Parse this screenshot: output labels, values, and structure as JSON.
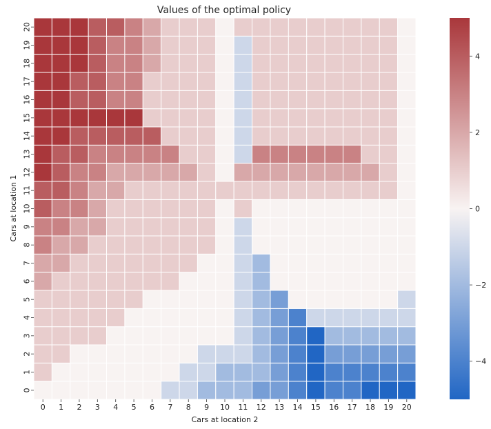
{
  "chart_data": {
    "type": "heatmap",
    "title": "Values of the optimal policy",
    "xlabel": "Cars at location 2",
    "ylabel": "Cars at location 1",
    "x": [
      0,
      1,
      2,
      3,
      4,
      5,
      6,
      7,
      8,
      9,
      10,
      11,
      12,
      13,
      14,
      15,
      16,
      17,
      18,
      19,
      20
    ],
    "y": [
      0,
      1,
      2,
      3,
      4,
      5,
      6,
      7,
      8,
      9,
      10,
      11,
      12,
      13,
      14,
      15,
      16,
      17,
      18,
      19,
      20
    ],
    "y_order": "descending",
    "colormap": "vlag",
    "color_stops": [
      "#2166c4",
      "#f8f3f2",
      "#a9373b"
    ],
    "vmin": -5,
    "vmax": 5,
    "colorbar_ticks": [
      -4,
      -2,
      0,
      2,
      4
    ],
    "colorbar_tick_labels": [
      "−4",
      "−2",
      "0",
      "2",
      "4"
    ],
    "gridline_color": "#ffffff",
    "values": [
      [
        0,
        0,
        0,
        0,
        0,
        0,
        0,
        -1,
        -1,
        -2,
        -2,
        -2,
        -3,
        -3,
        -4,
        -5,
        -4,
        -4,
        -5,
        -5,
        -5
      ],
      [
        1,
        0,
        0,
        0,
        0,
        0,
        0,
        0,
        -1,
        -1,
        -2,
        -2,
        -2,
        -3,
        -4,
        -5,
        -4,
        -4,
        -4,
        -4,
        -4
      ],
      [
        1,
        1,
        0,
        0,
        0,
        0,
        0,
        0,
        0,
        -1,
        -1,
        -1,
        -2,
        -3,
        -4,
        -5,
        -3,
        -3,
        -3,
        -3,
        -3
      ],
      [
        1,
        1,
        1,
        1,
        0,
        0,
        0,
        0,
        0,
        0,
        0,
        -1,
        -2,
        -3,
        -4,
        -5,
        -2,
        -2,
        -2,
        -2,
        -2
      ],
      [
        1,
        1,
        1,
        1,
        1,
        0,
        0,
        0,
        0,
        0,
        0,
        -1,
        -2,
        -3,
        -4,
        -1,
        -1,
        -1,
        -1,
        -1,
        -1
      ],
      [
        1,
        1,
        1,
        1,
        1,
        1,
        0,
        0,
        0,
        0,
        0,
        -1,
        -2,
        -3,
        0,
        0,
        0,
        0,
        0,
        0,
        -1
      ],
      [
        2,
        1,
        1,
        1,
        1,
        1,
        1,
        1,
        0,
        0,
        0,
        -1,
        -2,
        0,
        0,
        0,
        0,
        0,
        0,
        0,
        0
      ],
      [
        2,
        2,
        1,
        1,
        1,
        1,
        1,
        1,
        1,
        0,
        0,
        -1,
        -2,
        0,
        0,
        0,
        0,
        0,
        0,
        0,
        0
      ],
      [
        3,
        2,
        2,
        1,
        1,
        1,
        1,
        1,
        1,
        1,
        0,
        -1,
        0,
        0,
        0,
        0,
        0,
        0,
        0,
        0,
        0
      ],
      [
        3,
        3,
        2,
        2,
        1,
        1,
        1,
        1,
        1,
        1,
        0,
        -1,
        0,
        0,
        0,
        0,
        0,
        0,
        0,
        0,
        0
      ],
      [
        4,
        3,
        3,
        2,
        1,
        1,
        1,
        1,
        1,
        1,
        0,
        1,
        0,
        0,
        0,
        0,
        0,
        0,
        0,
        0,
        0
      ],
      [
        4,
        4,
        3,
        2,
        2,
        1,
        1,
        1,
        1,
        1,
        1,
        1,
        1,
        1,
        1,
        1,
        1,
        1,
        1,
        1,
        0
      ],
      [
        5,
        4,
        3,
        3,
        2,
        2,
        2,
        2,
        2,
        1,
        0,
        2,
        2,
        2,
        2,
        2,
        2,
        2,
        2,
        1,
        0
      ],
      [
        5,
        4,
        4,
        3,
        3,
        3,
        3,
        3,
        1,
        1,
        0,
        -1,
        3,
        3,
        3,
        3,
        3,
        3,
        1,
        1,
        0
      ],
      [
        5,
        5,
        4,
        4,
        4,
        4,
        4,
        1,
        1,
        1,
        0,
        -1,
        1,
        1,
        1,
        1,
        1,
        1,
        1,
        1,
        0
      ],
      [
        5,
        5,
        5,
        5,
        5,
        5,
        1,
        1,
        1,
        1,
        0,
        -1,
        1,
        1,
        1,
        1,
        1,
        1,
        1,
        1,
        0
      ],
      [
        5,
        5,
        4,
        4,
        3,
        3,
        1,
        1,
        1,
        1,
        0,
        -1,
        1,
        1,
        1,
        1,
        1,
        1,
        1,
        1,
        0
      ],
      [
        5,
        5,
        4,
        4,
        3,
        3,
        1,
        1,
        1,
        1,
        0,
        -1,
        1,
        1,
        1,
        1,
        1,
        1,
        1,
        1,
        0
      ],
      [
        5,
        5,
        5,
        4,
        3,
        3,
        2,
        1,
        1,
        1,
        0,
        -1,
        1,
        1,
        1,
        1,
        1,
        1,
        1,
        1,
        0
      ],
      [
        5,
        5,
        5,
        4,
        3,
        3,
        2,
        1,
        1,
        1,
        0,
        -1,
        1,
        1,
        1,
        1,
        1,
        1,
        1,
        1,
        0
      ],
      [
        5,
        5,
        5,
        4,
        4,
        3,
        2,
        1,
        1,
        1,
        0,
        1,
        1,
        1,
        1,
        1,
        1,
        1,
        1,
        1,
        0
      ]
    ]
  }
}
